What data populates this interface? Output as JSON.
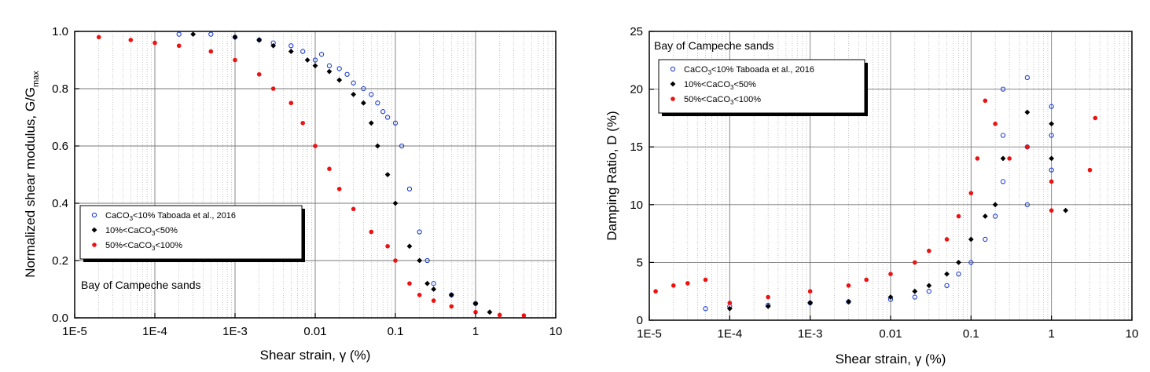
{
  "chart_data": [
    {
      "type": "scatter",
      "annotation": "Bay of Campeche sands",
      "xlabel": "Shear strain, γ (%)",
      "ylabel": "Normalized shear modulus, G/G",
      "ylabel_sub": "max",
      "x_scale": "log",
      "xlim": [
        1e-05,
        10
      ],
      "ylim": [
        0,
        1.0
      ],
      "x_tick_labels": [
        "1E-5",
        "1E-4",
        "1E-3",
        "0.01",
        "0.1",
        "1",
        "10"
      ],
      "y_tick_labels": [
        "0.0",
        "0.2",
        "0.4",
        "0.6",
        "0.8",
        "1.0"
      ],
      "grid": true,
      "legend_placement": "center-left",
      "legend": [
        {
          "pre": "CaCO",
          "sub": "3",
          "post": "<10% Taboada et al., 2016",
          "marker": "open-circle",
          "color": "#1f3fcf"
        },
        {
          "pre": "10%<CaCO",
          "sub": "3",
          "post": "<50%",
          "marker": "diamond",
          "color": "#000000"
        },
        {
          "pre": "50%<CaCO",
          "sub": "3",
          "post": "<100%",
          "marker": "filled-circle",
          "color": "#ee1111"
        }
      ],
      "series": [
        {
          "name": "CaCO3<10% Taboada et al., 2016",
          "marker": "open-circle",
          "color": "#1f3fcf",
          "x": [
            0.0002,
            0.0005,
            0.001,
            0.002,
            0.003,
            0.005,
            0.007,
            0.01,
            0.012,
            0.015,
            0.02,
            0.025,
            0.03,
            0.04,
            0.05,
            0.06,
            0.07,
            0.08,
            0.1,
            0.12,
            0.15,
            0.2,
            0.25,
            0.3,
            0.5,
            1.0
          ],
          "y": [
            0.99,
            0.99,
            0.98,
            0.97,
            0.96,
            0.95,
            0.93,
            0.9,
            0.92,
            0.88,
            0.87,
            0.85,
            0.82,
            0.8,
            0.78,
            0.75,
            0.72,
            0.7,
            0.68,
            0.6,
            0.45,
            0.3,
            0.2,
            0.12,
            0.08,
            0.05
          ]
        },
        {
          "name": "10%<CaCO3<50%",
          "marker": "diamond",
          "color": "#000000",
          "x": [
            0.0003,
            0.001,
            0.002,
            0.003,
            0.005,
            0.008,
            0.01,
            0.015,
            0.02,
            0.03,
            0.04,
            0.05,
            0.06,
            0.08,
            0.1,
            0.15,
            0.2,
            0.25,
            0.3,
            0.5,
            1.0,
            1.5
          ],
          "y": [
            0.99,
            0.98,
            0.97,
            0.95,
            0.93,
            0.9,
            0.88,
            0.86,
            0.83,
            0.78,
            0.75,
            0.68,
            0.6,
            0.5,
            0.4,
            0.25,
            0.2,
            0.12,
            0.1,
            0.08,
            0.05,
            0.02
          ]
        },
        {
          "name": "50%<CaCO3<100%",
          "marker": "filled-circle",
          "color": "#ee1111",
          "x": [
            2e-05,
            5e-05,
            0.0001,
            0.0002,
            0.0005,
            0.001,
            0.002,
            0.003,
            0.005,
            0.007,
            0.01,
            0.015,
            0.02,
            0.03,
            0.05,
            0.08,
            0.1,
            0.15,
            0.2,
            0.3,
            0.5,
            1.0,
            2.0,
            4.0
          ],
          "y": [
            0.98,
            0.97,
            0.96,
            0.95,
            0.93,
            0.9,
            0.85,
            0.8,
            0.75,
            0.68,
            0.6,
            0.52,
            0.45,
            0.38,
            0.3,
            0.25,
            0.2,
            0.12,
            0.08,
            0.06,
            0.04,
            0.02,
            0.01,
            0.005
          ]
        }
      ]
    },
    {
      "type": "scatter",
      "annotation": "Bay of Campeche sands",
      "xlabel": "Shear strain, γ (%)",
      "ylabel": "Damping Ratio, D (%)",
      "x_scale": "log",
      "xlim": [
        1e-05,
        10
      ],
      "ylim": [
        0,
        25
      ],
      "x_tick_labels": [
        "1E-5",
        "1E-4",
        "1E-3",
        "0.01",
        "0.1",
        "1",
        "10"
      ],
      "y_tick_labels": [
        "0",
        "5",
        "10",
        "15",
        "20",
        "25"
      ],
      "grid": true,
      "legend_placement": "top-left",
      "legend": [
        {
          "pre": "CaCO",
          "sub": "3",
          "post": "<10% Taboada et al., 2016",
          "marker": "open-circle",
          "color": "#1f3fcf"
        },
        {
          "pre": "10%<CaCO",
          "sub": "3",
          "post": "<50%",
          "marker": "diamond",
          "color": "#000000"
        },
        {
          "pre": "50%<CaCO",
          "sub": "3",
          "post": "<100%",
          "marker": "filled-circle",
          "color": "#ee1111"
        }
      ],
      "series": [
        {
          "name": "CaCO3<10% Taboada et al., 2016",
          "marker": "open-circle",
          "color": "#1f3fcf",
          "x": [
            5e-05,
            0.0001,
            0.0003,
            0.001,
            0.003,
            0.01,
            0.02,
            0.03,
            0.05,
            0.07,
            0.1,
            0.15,
            0.2,
            0.25,
            0.25,
            0.25,
            0.5,
            0.5,
            0.5,
            1.0,
            1.0,
            1.0
          ],
          "y": [
            1.0,
            1.2,
            1.3,
            1.5,
            1.6,
            1.8,
            2.0,
            2.5,
            3.0,
            4.0,
            5.0,
            7.0,
            9.0,
            12.0,
            16.0,
            20.0,
            10.0,
            15.0,
            21.0,
            13.0,
            16.0,
            18.5
          ]
        },
        {
          "name": "10%<CaCO3<50%",
          "marker": "diamond",
          "color": "#000000",
          "x": [
            0.0001,
            0.0003,
            0.001,
            0.003,
            0.01,
            0.02,
            0.03,
            0.05,
            0.07,
            0.1,
            0.15,
            0.2,
            0.25,
            0.5,
            0.5,
            1.0,
            1.0,
            1.5
          ],
          "y": [
            1.0,
            1.2,
            1.5,
            1.6,
            2.0,
            2.5,
            3.0,
            4.0,
            5.0,
            7.0,
            9.0,
            10.0,
            14.0,
            15.0,
            18.0,
            14.0,
            17.0,
            9.5
          ]
        },
        {
          "name": "50%<CaCO3<100%",
          "marker": "filled-circle",
          "color": "#ee1111",
          "x": [
            1.2e-05,
            2e-05,
            3e-05,
            5e-05,
            0.0001,
            0.0003,
            0.001,
            0.003,
            0.005,
            0.01,
            0.02,
            0.03,
            0.05,
            0.07,
            0.1,
            0.12,
            0.15,
            0.2,
            0.3,
            0.5,
            1.0,
            1.0,
            3.0,
            3.5
          ],
          "y": [
            2.5,
            3.0,
            3.2,
            3.5,
            1.5,
            2.0,
            2.5,
            3.0,
            3.5,
            4.0,
            5.0,
            6.0,
            7.0,
            9.0,
            11.0,
            14.0,
            19.0,
            17.0,
            14.0,
            15.0,
            12.0,
            9.5,
            13.0,
            17.5
          ]
        }
      ]
    }
  ]
}
